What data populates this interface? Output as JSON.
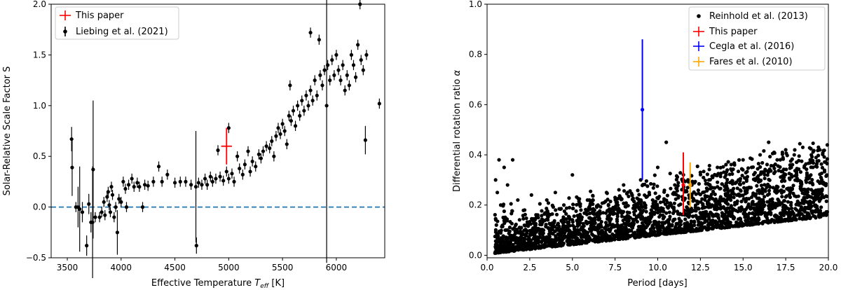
{
  "chart_data": [
    {
      "type": "scatter",
      "xlabel_prefix": "Effective Temperature ",
      "xlabel_symbol": "T",
      "xlabel_subscript": "eff",
      "xlabel_suffix": " [K]",
      "ylabel": "Solar-Relative Scale Factor S",
      "xlim": [
        3350,
        6450
      ],
      "ylim": [
        -0.5,
        2.0
      ],
      "xticks": [
        3500,
        4000,
        4500,
        5000,
        5500,
        6000
      ],
      "yticks": [
        -0.5,
        0.0,
        0.5,
        1.0,
        1.5,
        2.0
      ],
      "ytick_labels": [
        "−0.5",
        "0.0",
        "0.5",
        "1.0",
        "1.5",
        "2.0"
      ],
      "grid": false,
      "legend_position": "top-left",
      "reference_line": {
        "y": 0.0,
        "style": "dashed",
        "color": "#1f77b4"
      },
      "series": [
        {
          "name": "This paper",
          "color": "#ff0000",
          "points": [
            {
              "x": 4980,
              "y": 0.6,
              "xerr": 50,
              "yerr": 0.18
            }
          ]
        },
        {
          "name": "Liebing et al. (2021)",
          "color": "#000000",
          "points": [
            {
              "x": 3540,
              "y": 0.67,
              "yerr": 0.12
            },
            {
              "x": 3545,
              "y": 0.39,
              "yerr": 0.28
            },
            {
              "x": 3580,
              "y": 0.0,
              "yerr": 0.05
            },
            {
              "x": 3600,
              "y": 0.0,
              "yerr": 0.2
            },
            {
              "x": 3615,
              "y": -0.02,
              "yerr": 0.42
            },
            {
              "x": 3640,
              "y": -0.05,
              "yerr": 0.1
            },
            {
              "x": 3680,
              "y": -0.38,
              "yerr": 0.1
            },
            {
              "x": 3700,
              "y": 0.03,
              "yerr": 0.1
            },
            {
              "x": 3720,
              "y": -0.15,
              "yerr": 0.1
            },
            {
              "x": 3735,
              "y": -0.15,
              "yerr": 0.55
            },
            {
              "x": 3740,
              "y": 0.37,
              "yerr": 0.68
            },
            {
              "x": 3760,
              "y": -0.1,
              "yerr": 0.05
            },
            {
              "x": 3800,
              "y": -0.1,
              "yerr": 0.05
            },
            {
              "x": 3820,
              "y": -0.05,
              "yerr": 0.05
            },
            {
              "x": 3840,
              "y": 0.05,
              "yerr": 0.05
            },
            {
              "x": 3850,
              "y": -0.08,
              "yerr": 0.05
            },
            {
              "x": 3870,
              "y": 0.1,
              "yerr": 0.05
            },
            {
              "x": 3880,
              "y": 0.15,
              "yerr": 0.05
            },
            {
              "x": 3890,
              "y": 0.02,
              "yerr": 0.05
            },
            {
              "x": 3900,
              "y": -0.05,
              "yerr": 0.05
            },
            {
              "x": 3910,
              "y": 0.2,
              "yerr": 0.05
            },
            {
              "x": 3920,
              "y": 0.12,
              "yerr": 0.05
            },
            {
              "x": 3935,
              "y": -0.1,
              "yerr": 0.05
            },
            {
              "x": 3950,
              "y": 0.0,
              "yerr": 0.05
            },
            {
              "x": 3965,
              "y": -0.25,
              "yerr": 0.22
            },
            {
              "x": 3980,
              "y": 0.08,
              "yerr": 0.05
            },
            {
              "x": 4000,
              "y": 0.05,
              "yerr": 0.05
            },
            {
              "x": 4020,
              "y": 0.25,
              "yerr": 0.05
            },
            {
              "x": 4040,
              "y": 0.18,
              "yerr": 0.05
            },
            {
              "x": 4050,
              "y": 0.0,
              "yerr": 0.05
            },
            {
              "x": 4070,
              "y": 0.22,
              "yerr": 0.05
            },
            {
              "x": 4100,
              "y": 0.28,
              "yerr": 0.05
            },
            {
              "x": 4120,
              "y": 0.2,
              "yerr": 0.05
            },
            {
              "x": 4150,
              "y": 0.24,
              "yerr": 0.05
            },
            {
              "x": 4170,
              "y": 0.2,
              "yerr": 0.05
            },
            {
              "x": 4200,
              "y": 0.0,
              "yerr": 0.05
            },
            {
              "x": 4220,
              "y": 0.22,
              "yerr": 0.05
            },
            {
              "x": 4250,
              "y": 0.21,
              "yerr": 0.05
            },
            {
              "x": 4300,
              "y": 0.25,
              "yerr": 0.05
            },
            {
              "x": 4350,
              "y": 0.4,
              "yerr": 0.05
            },
            {
              "x": 4380,
              "y": 0.25,
              "yerr": 0.05
            },
            {
              "x": 4430,
              "y": 0.32,
              "yerr": 0.05
            },
            {
              "x": 4500,
              "y": 0.24,
              "yerr": 0.05
            },
            {
              "x": 4550,
              "y": 0.25,
              "yerr": 0.05
            },
            {
              "x": 4600,
              "y": 0.25,
              "yerr": 0.05
            },
            {
              "x": 4650,
              "y": 0.22,
              "yerr": 0.05
            },
            {
              "x": 4695,
              "y": 0.2,
              "yerr": 0.55
            },
            {
              "x": 4700,
              "y": -0.38,
              "yerr": 0.08
            },
            {
              "x": 4720,
              "y": 0.24,
              "yerr": 0.05
            },
            {
              "x": 4750,
              "y": 0.22,
              "yerr": 0.05
            },
            {
              "x": 4780,
              "y": 0.28,
              "yerr": 0.05
            },
            {
              "x": 4800,
              "y": 0.22,
              "yerr": 0.05
            },
            {
              "x": 4830,
              "y": 0.3,
              "yerr": 0.05
            },
            {
              "x": 4850,
              "y": 0.25,
              "yerr": 0.05
            },
            {
              "x": 4880,
              "y": 0.28,
              "yerr": 0.05
            },
            {
              "x": 4900,
              "y": 0.56,
              "yerr": 0.05
            },
            {
              "x": 4920,
              "y": 0.3,
              "yerr": 0.05
            },
            {
              "x": 4950,
              "y": 0.26,
              "yerr": 0.05
            },
            {
              "x": 4980,
              "y": 0.35,
              "yerr": 0.05
            },
            {
              "x": 5000,
              "y": 0.78,
              "yerr": 0.05
            },
            {
              "x": 5000,
              "y": 0.28,
              "yerr": 0.05
            },
            {
              "x": 5030,
              "y": 0.33,
              "yerr": 0.05
            },
            {
              "x": 5050,
              "y": 0.25,
              "yerr": 0.05
            },
            {
              "x": 5080,
              "y": 0.5,
              "yerr": 0.05
            },
            {
              "x": 5100,
              "y": 0.38,
              "yerr": 0.05
            },
            {
              "x": 5130,
              "y": 0.32,
              "yerr": 0.05
            },
            {
              "x": 5150,
              "y": 0.42,
              "yerr": 0.05
            },
            {
              "x": 5180,
              "y": 0.55,
              "yerr": 0.05
            },
            {
              "x": 5200,
              "y": 0.35,
              "yerr": 0.05
            },
            {
              "x": 5220,
              "y": 0.45,
              "yerr": 0.05
            },
            {
              "x": 5250,
              "y": 0.4,
              "yerr": 0.05
            },
            {
              "x": 5280,
              "y": 0.52,
              "yerr": 0.05
            },
            {
              "x": 5300,
              "y": 0.48,
              "yerr": 0.05
            },
            {
              "x": 5320,
              "y": 0.55,
              "yerr": 0.05
            },
            {
              "x": 5350,
              "y": 0.6,
              "yerr": 0.05
            },
            {
              "x": 5380,
              "y": 0.58,
              "yerr": 0.05
            },
            {
              "x": 5400,
              "y": 0.65,
              "yerr": 0.05
            },
            {
              "x": 5420,
              "y": 0.5,
              "yerr": 0.05
            },
            {
              "x": 5440,
              "y": 0.7,
              "yerr": 0.05
            },
            {
              "x": 5460,
              "y": 0.78,
              "yerr": 0.05
            },
            {
              "x": 5480,
              "y": 0.72,
              "yerr": 0.05
            },
            {
              "x": 5500,
              "y": 0.82,
              "yerr": 0.05
            },
            {
              "x": 5520,
              "y": 0.75,
              "yerr": 0.05
            },
            {
              "x": 5540,
              "y": 0.62,
              "yerr": 0.05
            },
            {
              "x": 5560,
              "y": 0.9,
              "yerr": 0.05
            },
            {
              "x": 5570,
              "y": 1.2,
              "yerr": 0.05
            },
            {
              "x": 5580,
              "y": 0.85,
              "yerr": 0.05
            },
            {
              "x": 5600,
              "y": 0.95,
              "yerr": 0.05
            },
            {
              "x": 5620,
              "y": 0.8,
              "yerr": 0.05
            },
            {
              "x": 5640,
              "y": 1.0,
              "yerr": 0.05
            },
            {
              "x": 5660,
              "y": 0.9,
              "yerr": 0.05
            },
            {
              "x": 5680,
              "y": 1.05,
              "yerr": 0.05
            },
            {
              "x": 5700,
              "y": 0.95,
              "yerr": 0.05
            },
            {
              "x": 5720,
              "y": 1.1,
              "yerr": 0.05
            },
            {
              "x": 5740,
              "y": 1.0,
              "yerr": 0.05
            },
            {
              "x": 5760,
              "y": 1.72,
              "yerr": 0.05
            },
            {
              "x": 5760,
              "y": 1.15,
              "yerr": 0.05
            },
            {
              "x": 5780,
              "y": 1.05,
              "yerr": 0.05
            },
            {
              "x": 5800,
              "y": 1.25,
              "yerr": 0.05
            },
            {
              "x": 5820,
              "y": 1.1,
              "yerr": 0.05
            },
            {
              "x": 5840,
              "y": 1.65,
              "yerr": 0.05
            },
            {
              "x": 5850,
              "y": 1.3,
              "yerr": 0.05
            },
            {
              "x": 5870,
              "y": 1.2,
              "yerr": 0.05
            },
            {
              "x": 5890,
              "y": 1.35,
              "yerr": 0.05
            },
            {
              "x": 5910,
              "y": 1.0,
              "yerr": 1.55
            },
            {
              "x": 5920,
              "y": 1.4,
              "yerr": 0.05
            },
            {
              "x": 5940,
              "y": 1.25,
              "yerr": 0.05
            },
            {
              "x": 5960,
              "y": 1.45,
              "yerr": 0.05
            },
            {
              "x": 5980,
              "y": 1.3,
              "yerr": 0.05
            },
            {
              "x": 6000,
              "y": 1.5,
              "yerr": 0.05
            },
            {
              "x": 6020,
              "y": 1.35,
              "yerr": 0.05
            },
            {
              "x": 6040,
              "y": 1.25,
              "yerr": 0.05
            },
            {
              "x": 6060,
              "y": 1.4,
              "yerr": 0.05
            },
            {
              "x": 6080,
              "y": 1.15,
              "yerr": 0.05
            },
            {
              "x": 6100,
              "y": 1.3,
              "yerr": 0.05
            },
            {
              "x": 6120,
              "y": 1.2,
              "yerr": 0.05
            },
            {
              "x": 6140,
              "y": 1.5,
              "yerr": 0.05
            },
            {
              "x": 6160,
              "y": 1.4,
              "yerr": 0.05
            },
            {
              "x": 6180,
              "y": 1.28,
              "yerr": 0.05
            },
            {
              "x": 6200,
              "y": 1.6,
              "yerr": 0.05
            },
            {
              "x": 6220,
              "y": 2.0,
              "yerr": 0.05
            },
            {
              "x": 6230,
              "y": 1.45,
              "yerr": 0.05
            },
            {
              "x": 6250,
              "y": 1.35,
              "yerr": 0.05
            },
            {
              "x": 6270,
              "y": 0.66,
              "yerr": 0.14
            },
            {
              "x": 6280,
              "y": 1.5,
              "yerr": 0.05
            },
            {
              "x": 6400,
              "y": 1.02,
              "yerr": 0.05
            }
          ]
        }
      ]
    },
    {
      "type": "scatter",
      "xlabel": "Period [days]",
      "ylabel_prefix": "Differential rotation ratio ",
      "ylabel_symbol": "α",
      "xlim": [
        0.0,
        20.0
      ],
      "ylim": [
        -0.01,
        1.0
      ],
      "xticks": [
        0.0,
        2.5,
        5.0,
        7.5,
        10.0,
        12.5,
        15.0,
        17.5,
        20.0
      ],
      "xtick_labels": [
        "0.0",
        "2.5",
        "5.0",
        "7.5",
        "10.0",
        "12.5",
        "15.0",
        "17.5",
        "20.0"
      ],
      "yticks": [
        0.0,
        0.2,
        0.4,
        0.6,
        0.8,
        1.0
      ],
      "ytick_labels": [
        "0.0",
        "0.2",
        "0.4",
        "0.6",
        "0.8",
        "1.0"
      ],
      "grid": false,
      "legend_position": "top-right",
      "series": [
        {
          "name": "Reinhold et al. (2013)",
          "color": "#000000",
          "points": [
            {
              "x": 0.5,
              "y": 0.3
            },
            {
              "x": 0.6,
              "y": 0.25
            },
            {
              "x": 0.7,
              "y": 0.38
            },
            {
              "x": 0.8,
              "y": 0.2
            },
            {
              "x": 1.0,
              "y": 0.35
            },
            {
              "x": 1.2,
              "y": 0.28
            },
            {
              "x": 1.5,
              "y": 0.38
            },
            {
              "x": 1.8,
              "y": 0.22
            },
            {
              "x": 2.2,
              "y": 0.18
            },
            {
              "x": 2.6,
              "y": 0.24
            },
            {
              "x": 3.0,
              "y": 0.15
            },
            {
              "x": 3.5,
              "y": 0.22
            },
            {
              "x": 4.0,
              "y": 0.25
            },
            {
              "x": 4.5,
              "y": 0.2
            },
            {
              "x": 5.0,
              "y": 0.32
            },
            {
              "x": 5.5,
              "y": 0.18
            },
            {
              "x": 6.0,
              "y": 0.22
            },
            {
              "x": 6.5,
              "y": 0.2
            },
            {
              "x": 7.0,
              "y": 0.25
            },
            {
              "x": 7.5,
              "y": 0.23
            },
            {
              "x": 8.0,
              "y": 0.28
            },
            {
              "x": 8.5,
              "y": 0.24
            },
            {
              "x": 9.0,
              "y": 0.3
            },
            {
              "x": 9.5,
              "y": 0.25
            },
            {
              "x": 10.0,
              "y": 0.35
            },
            {
              "x": 10.5,
              "y": 0.45
            },
            {
              "x": 11.0,
              "y": 0.28
            },
            {
              "x": 11.5,
              "y": 0.3
            },
            {
              "x": 12.0,
              "y": 0.28
            },
            {
              "x": 12.5,
              "y": 0.33
            },
            {
              "x": 13.0,
              "y": 0.3
            },
            {
              "x": 13.5,
              "y": 0.35
            },
            {
              "x": 14.0,
              "y": 0.32
            },
            {
              "x": 14.5,
              "y": 0.36
            },
            {
              "x": 15.0,
              "y": 0.38
            },
            {
              "x": 15.5,
              "y": 0.35
            },
            {
              "x": 16.0,
              "y": 0.4
            },
            {
              "x": 16.5,
              "y": 0.45
            },
            {
              "x": 17.0,
              "y": 0.38
            },
            {
              "x": 17.5,
              "y": 0.42
            },
            {
              "x": 18.0,
              "y": 0.4
            },
            {
              "x": 18.5,
              "y": 0.43
            },
            {
              "x": 19.0,
              "y": 0.4
            },
            {
              "x": 19.5,
              "y": 0.42
            }
          ]
        },
        {
          "name": "This paper",
          "color": "#ff0000",
          "points": [
            {
              "x": 11.5,
              "y": 0.28,
              "yerr_low": 0.12,
              "yerr_high": 0.13
            }
          ]
        },
        {
          "name": "Cegla et al. (2016)",
          "color": "#0000ff",
          "points": [
            {
              "x": 9.1,
              "y": 0.58,
              "yerr_low": 0.28,
              "yerr_high": 0.28
            }
          ]
        },
        {
          "name": "Fares et al. (2010)",
          "color": "#ffa500",
          "points": [
            {
              "x": 11.9,
              "y": 0.28,
              "yerr_low": 0.09,
              "yerr_high": 0.09
            }
          ]
        }
      ]
    }
  ]
}
